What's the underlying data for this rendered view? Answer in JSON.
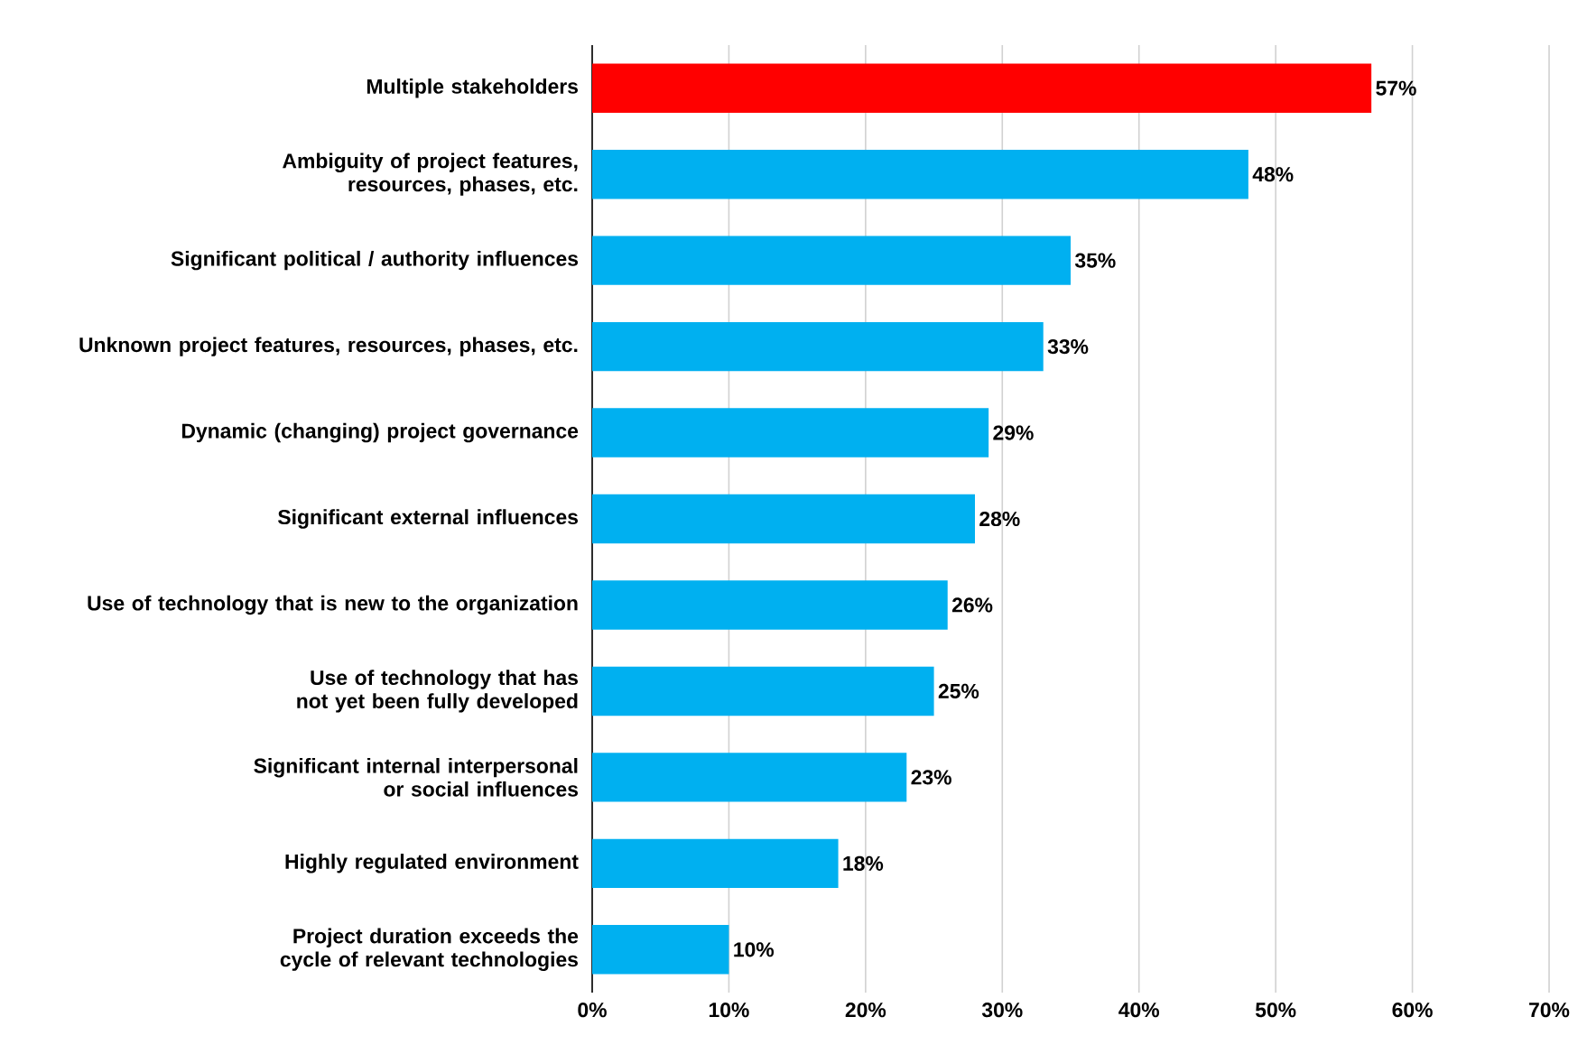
{
  "chart_data": {
    "type": "bar",
    "orientation": "horizontal",
    "categories": [
      "Multiple stakeholders",
      "Ambiguity of project features, resources, phases, etc.",
      "Significant political / authority influences",
      "Unknown project features, resources, phases, etc.",
      "Dynamic (changing) project governance",
      "Significant external influences",
      "Use of technology that is new to the organization",
      "Use of technology that has not yet been fully developed",
      "Significant internal interpersonal or social influences",
      "Highly regulated environment",
      "Project duration exceeds the cycle of relevant technologies"
    ],
    "values": [
      57,
      48,
      35,
      33,
      29,
      28,
      26,
      25,
      23,
      18,
      10
    ],
    "colors": [
      "#ff0000",
      "#00b0f0",
      "#00b0f0",
      "#00b0f0",
      "#00b0f0",
      "#00b0f0",
      "#00b0f0",
      "#00b0f0",
      "#00b0f0",
      "#00b0f0",
      "#00b0f0"
    ],
    "value_labels": [
      "57%",
      "48%",
      "35%",
      "33%",
      "29%",
      "28%",
      "26%",
      "25%",
      "23%",
      "18%",
      "10%"
    ],
    "xlim": [
      0,
      70
    ],
    "xticks": [
      {
        "value": 0,
        "label": "0%"
      },
      {
        "value": 10,
        "label": "10%"
      },
      {
        "value": 20,
        "label": "20%"
      },
      {
        "value": 30,
        "label": "30%"
      },
      {
        "value": 40,
        "label": "40%"
      },
      {
        "value": 50,
        "label": "50%"
      },
      {
        "value": 60,
        "label": "60%"
      },
      {
        "value": 70,
        "label": "70%"
      }
    ],
    "grid": "x"
  }
}
